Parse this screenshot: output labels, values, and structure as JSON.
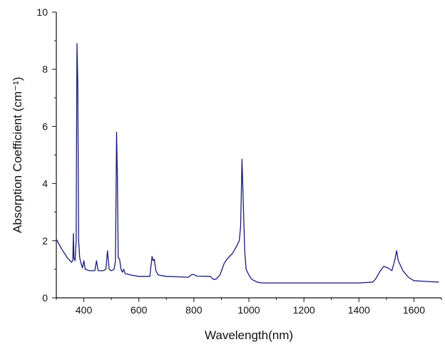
{
  "chart_data": {
    "type": "line",
    "title": "",
    "xlabel": "Wavelength(nm)",
    "ylabel": "Absorption Coefficient (cm⁻¹)",
    "xlim": [
      300,
      1700
    ],
    "ylim": [
      0,
      10
    ],
    "x_ticks": [
      400,
      600,
      800,
      1000,
      1200,
      1400,
      1600
    ],
    "y_ticks": [
      0,
      2,
      4,
      6,
      8,
      10
    ],
    "grid": false,
    "legend": "none",
    "series_color": "#1a1a7a",
    "series": [
      {
        "points": [
          [
            300,
            2.05
          ],
          [
            320,
            1.7
          ],
          [
            340,
            1.4
          ],
          [
            355,
            1.25
          ],
          [
            360,
            1.3
          ],
          [
            362,
            2.25
          ],
          [
            364,
            1.4
          ],
          [
            368,
            1.3
          ],
          [
            372,
            2.0
          ],
          [
            375,
            8.9
          ],
          [
            378,
            7.5
          ],
          [
            381,
            2.0
          ],
          [
            385,
            1.4
          ],
          [
            390,
            1.2
          ],
          [
            395,
            1.05
          ],
          [
            400,
            1.3
          ],
          [
            405,
            1.0
          ],
          [
            420,
            0.95
          ],
          [
            440,
            0.95
          ],
          [
            446,
            1.3
          ],
          [
            452,
            0.95
          ],
          [
            470,
            0.95
          ],
          [
            480,
            1.0
          ],
          [
            486,
            1.65
          ],
          [
            492,
            1.0
          ],
          [
            500,
            0.95
          ],
          [
            510,
            1.0
          ],
          [
            515,
            1.3
          ],
          [
            519,
            5.8
          ],
          [
            522,
            4.2
          ],
          [
            525,
            1.4
          ],
          [
            530,
            1.35
          ],
          [
            535,
            1.0
          ],
          [
            540,
            0.9
          ],
          [
            545,
            1.0
          ],
          [
            550,
            0.85
          ],
          [
            570,
            0.8
          ],
          [
            600,
            0.75
          ],
          [
            640,
            0.75
          ],
          [
            648,
            1.45
          ],
          [
            652,
            1.3
          ],
          [
            656,
            1.35
          ],
          [
            662,
            0.95
          ],
          [
            670,
            0.8
          ],
          [
            700,
            0.75
          ],
          [
            780,
            0.72
          ],
          [
            790,
            0.8
          ],
          [
            800,
            0.82
          ],
          [
            810,
            0.76
          ],
          [
            860,
            0.75
          ],
          [
            870,
            0.65
          ],
          [
            880,
            0.65
          ],
          [
            895,
            0.8
          ],
          [
            910,
            1.2
          ],
          [
            920,
            1.35
          ],
          [
            940,
            1.55
          ],
          [
            955,
            1.8
          ],
          [
            965,
            2.0
          ],
          [
            970,
            2.5
          ],
          [
            975,
            4.85
          ],
          [
            980,
            3.2
          ],
          [
            985,
            1.6
          ],
          [
            990,
            1.0
          ],
          [
            1000,
            0.8
          ],
          [
            1010,
            0.65
          ],
          [
            1030,
            0.55
          ],
          [
            1050,
            0.52
          ],
          [
            1200,
            0.52
          ],
          [
            1400,
            0.52
          ],
          [
            1450,
            0.55
          ],
          [
            1460,
            0.65
          ],
          [
            1475,
            0.9
          ],
          [
            1490,
            1.1
          ],
          [
            1505,
            1.05
          ],
          [
            1520,
            0.95
          ],
          [
            1530,
            1.3
          ],
          [
            1537,
            1.65
          ],
          [
            1543,
            1.3
          ],
          [
            1560,
            0.95
          ],
          [
            1580,
            0.72
          ],
          [
            1600,
            0.6
          ],
          [
            1650,
            0.57
          ],
          [
            1690,
            0.55
          ]
        ]
      }
    ]
  }
}
